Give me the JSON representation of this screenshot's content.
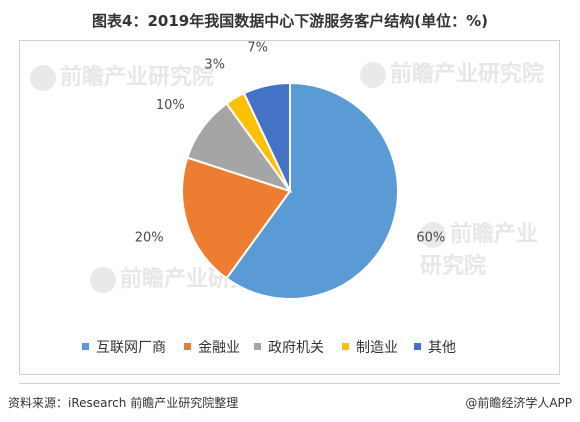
{
  "title": "图表4：2019年我国数据中心下游服务客户结构(单位：%)",
  "chart_data": {
    "type": "pie",
    "title": "图表4：2019年我国数据中心下游服务客户结构(单位：%)",
    "unit": "%",
    "categories": [
      "互联网厂商",
      "金融业",
      "政府机关",
      "制造业",
      "其他"
    ],
    "values": [
      60,
      20,
      10,
      3,
      7
    ],
    "labels": [
      "60%",
      "20%",
      "10%",
      "3%",
      "7%"
    ],
    "colors": [
      "#5b9bd5",
      "#ed7d31",
      "#a5a5a5",
      "#ffc000",
      "#4472c4"
    ],
    "legend_position": "bottom"
  },
  "watermark": {
    "text": "前瞻产业研究院"
  },
  "footer": {
    "source": "资料来源：iResearch 前瞻产业研究院整理",
    "brand": "@前瞻经济学人APP"
  }
}
